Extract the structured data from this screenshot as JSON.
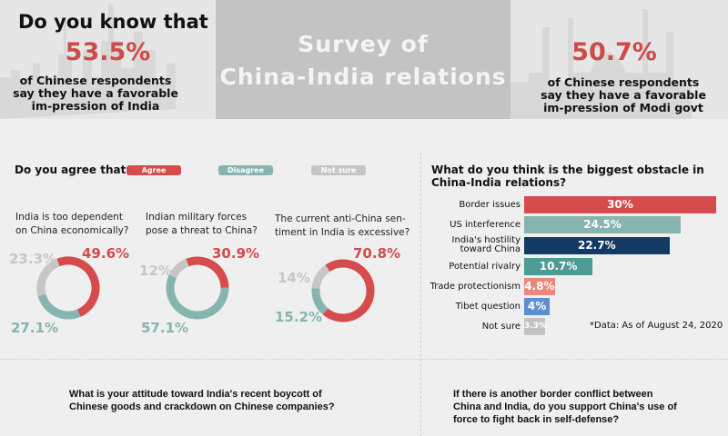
{
  "header": {
    "intro": "Do you know that",
    "left_stat": "53.5%",
    "left_text": "of Chinese respondents say they have a favorable im-pression of India",
    "title_line1": "Survey of",
    "title_line2": "China-India relations",
    "right_stat": "50.7%",
    "right_text": "of Chinese respondents say they have a favorable im-pression of Modi govt"
  },
  "agree_section": {
    "heading": "Do you agree that...",
    "legend": [
      {
        "label": "Agree",
        "color": "#d64b4b"
      },
      {
        "label": "Disagree",
        "color": "#86b5b0"
      },
      {
        "label": "Not sure",
        "color": "#c6c6c6"
      }
    ]
  },
  "chart_data": [
    {
      "type": "pie",
      "title": "India is too dependent on China economically?",
      "labels": [
        "Agree",
        "Disagree",
        "Not sure"
      ],
      "values": [
        49.6,
        27.1,
        23.3
      ],
      "value_labels": [
        "49.6%",
        "27.1%",
        "23.3%"
      ]
    },
    {
      "type": "pie",
      "title": "Indian military forces pose a threat to China?",
      "labels": [
        "Agree",
        "Disagree",
        "Not sure"
      ],
      "values": [
        30.9,
        57.1,
        12
      ],
      "value_labels": [
        "30.9%",
        "57.1%",
        "12%"
      ]
    },
    {
      "type": "pie",
      "title": "The current anti-China sen-timent in India is excessive?",
      "labels": [
        "Agree",
        "Disagree",
        "Not sure"
      ],
      "values": [
        70.8,
        15.2,
        14
      ],
      "value_labels": [
        "70.8%",
        "15.2%",
        "14%"
      ]
    },
    {
      "type": "bar",
      "title": "What do you think is the biggest obstacle in China-India relations?",
      "categories": [
        "Border issues",
        "US interference",
        "India's hostility toward China",
        "Potential rivalry",
        "Trade protectionism",
        "Tibet question",
        "Not sure"
      ],
      "values": [
        30,
        24.5,
        22.7,
        10.7,
        4.8,
        4,
        3.3
      ],
      "value_labels": [
        "30%",
        "24.5%",
        "22.7%",
        "10.7%",
        "4.8%",
        "4%",
        "3.3%"
      ],
      "colors": [
        "#d64b4b",
        "#86b5b0",
        "#123a62",
        "#4e9a94",
        "#e8897c",
        "#5b8fd0",
        "#c2c2c2"
      ],
      "note": "*Data: As of August 24, 2020"
    }
  ],
  "bottom": {
    "q1": "What is your attitude toward India's recent boycott of Chinese goods and crackdown on Chinese companies?",
    "q2": "If there is another border conflict between China and India, do you support China's use of force to fight back in self-defense?"
  }
}
